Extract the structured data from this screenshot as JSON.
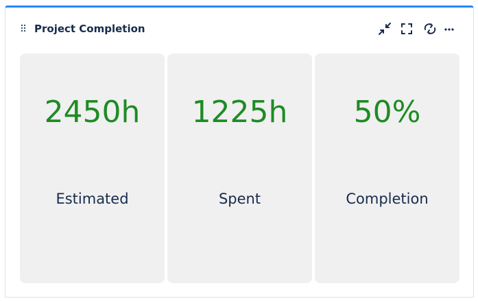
{
  "header": {
    "title": "Project Completion"
  },
  "cards": [
    {
      "value": "2450h",
      "label": "Estimated"
    },
    {
      "value": "1225h",
      "label": "Spent"
    },
    {
      "value": "50%",
      "label": "Completion"
    }
  ]
}
